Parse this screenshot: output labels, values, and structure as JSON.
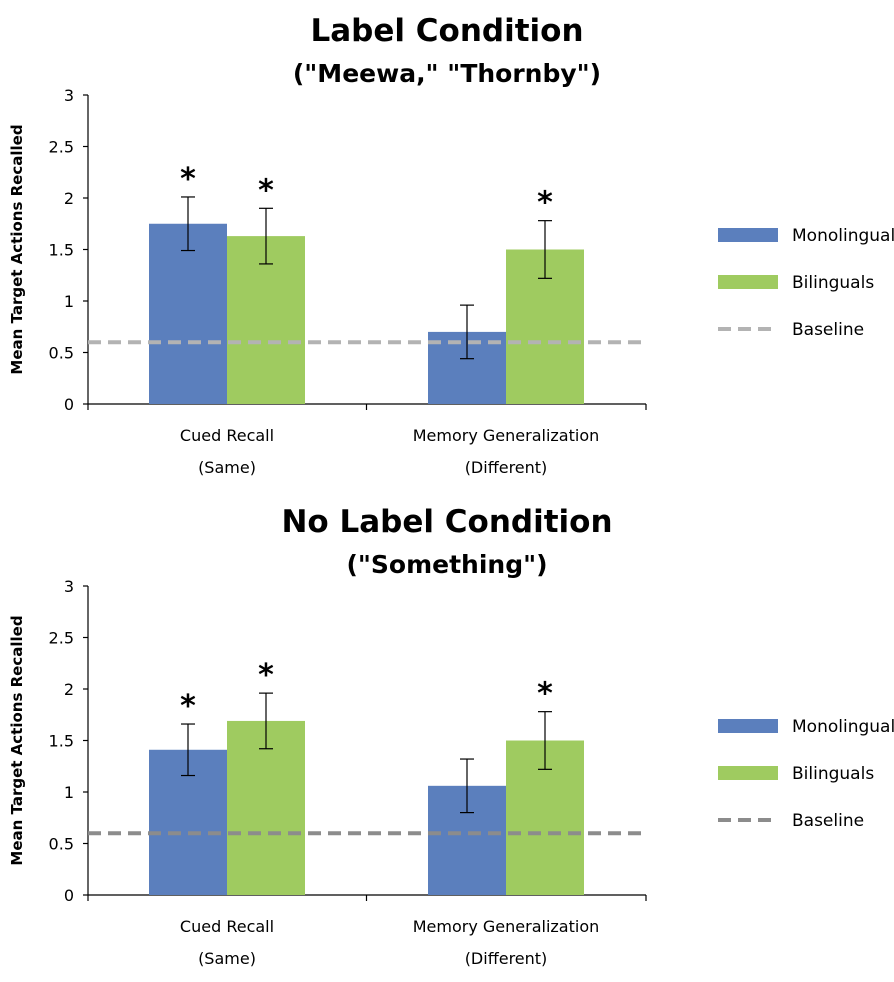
{
  "chart_data": [
    {
      "type": "bar",
      "title": "Label Condition",
      "subtitle": "(\"Meewa,\" \"Thornby\")",
      "ylabel": "Mean Target Actions Recalled",
      "xlabel": "",
      "ylim": [
        0,
        3
      ],
      "yticks": [
        "0",
        "0.5",
        "1",
        "1.5",
        "2",
        "2.5",
        "3"
      ],
      "categories": [
        {
          "line1": "Cued Recall",
          "line2": "(Same)"
        },
        {
          "line1": "Memory Generalization",
          "line2": "(Different)"
        }
      ],
      "series": [
        {
          "name": "Monolinguals",
          "color": "#5b7fbd",
          "values": [
            1.75,
            0.7
          ],
          "errors": [
            0.26,
            0.26
          ],
          "significant": [
            true,
            false
          ]
        },
        {
          "name": "Bilinguals",
          "color": "#9fcb60",
          "values": [
            1.63,
            1.5
          ],
          "errors": [
            0.27,
            0.28
          ],
          "significant": [
            true,
            true
          ]
        }
      ],
      "baseline": {
        "name": "Baseline",
        "value": 0.6,
        "color": "#b3b3b3"
      },
      "significance_marker": "*",
      "legend_position": "right",
      "grid": false
    },
    {
      "type": "bar",
      "title": "No Label Condition",
      "subtitle": "(\"Something\")",
      "ylabel": "Mean Target Actions Recalled",
      "xlabel": "",
      "ylim": [
        0,
        3
      ],
      "yticks": [
        "0",
        "0.5",
        "1",
        "1.5",
        "2",
        "2.5",
        "3"
      ],
      "categories": [
        {
          "line1": "Cued Recall",
          "line2": "(Same)"
        },
        {
          "line1": "Memory Generalization",
          "line2": "(Different)"
        }
      ],
      "series": [
        {
          "name": "Monolinguals",
          "color": "#5b7fbd",
          "values": [
            1.41,
            1.06
          ],
          "errors": [
            0.25,
            0.26
          ],
          "significant": [
            true,
            false
          ]
        },
        {
          "name": "Bilinguals",
          "color": "#9fcb60",
          "values": [
            1.69,
            1.5
          ],
          "errors": [
            0.27,
            0.28
          ],
          "significant": [
            true,
            true
          ]
        }
      ],
      "baseline": {
        "name": "Baseline",
        "value": 0.6,
        "color": "#8c8c8c"
      },
      "significance_marker": "*",
      "legend_position": "right",
      "grid": false
    }
  ]
}
